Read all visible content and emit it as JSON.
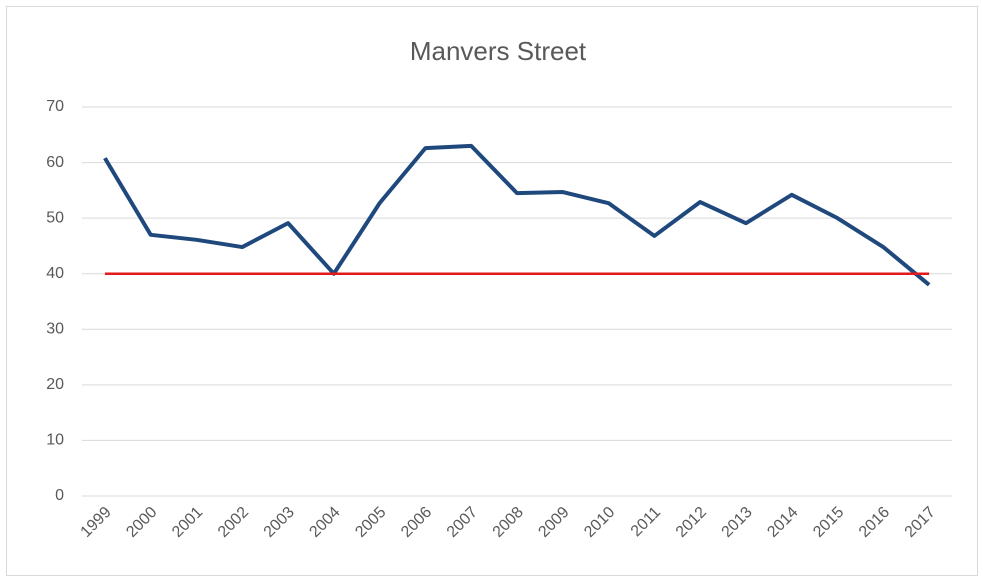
{
  "chart_data": {
    "type": "line",
    "title": "Manvers Street",
    "categories": [
      "1999",
      "2000",
      "2001",
      "2002",
      "2003",
      "2004",
      "2005",
      "2006",
      "2007",
      "2008",
      "2009",
      "2010",
      "2011",
      "2012",
      "2013",
      "2014",
      "2015",
      "2016",
      "2017"
    ],
    "series": [
      {
        "color": "#1f497d",
        "values": [
          60.8,
          47.0,
          46.1,
          44.8,
          49.1,
          40.0,
          52.7,
          62.6,
          63.0,
          54.5,
          54.7,
          52.7,
          46.8,
          52.9,
          49.1,
          54.2,
          50.0,
          44.8,
          38.0
        ]
      },
      {
        "color": "#e31a1c",
        "values": [
          40,
          40,
          40,
          40,
          40,
          40,
          40,
          40,
          40,
          40,
          40,
          40,
          40,
          40,
          40,
          40,
          40,
          40,
          40
        ]
      }
    ],
    "ylim": [
      0,
      70
    ],
    "yticks": [
      0,
      10,
      20,
      30,
      40,
      50,
      60,
      70
    ],
    "grid": true
  }
}
